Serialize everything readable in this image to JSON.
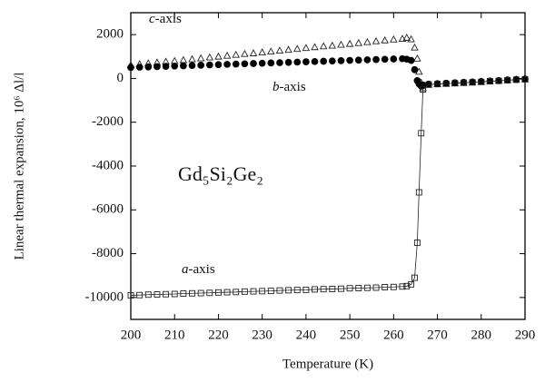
{
  "chart_data": {
    "type": "scatter",
    "xlabel": "Temperature (K)",
    "ylabel": "Linear thermal expansion, 10⁶ Δl/l",
    "annotation": "Gd₅Si₂Ge₂",
    "xlim": [
      200,
      290
    ],
    "xticks": [
      200,
      210,
      220,
      230,
      240,
      250,
      260,
      270,
      280,
      290
    ],
    "ylim": [
      -11000,
      3000
    ],
    "yticks": [
      -10000,
      -8000,
      -6000,
      -4000,
      -2000,
      0,
      2000
    ],
    "series": [
      {
        "name": "c-axis",
        "marker": "triangle",
        "filled": false,
        "color": "#222222",
        "x": [
          200,
          202,
          204,
          206,
          208,
          210,
          212,
          214,
          216,
          218,
          220,
          222,
          224,
          226,
          228,
          230,
          232,
          234,
          236,
          238,
          240,
          242,
          244,
          246,
          248,
          250,
          252,
          254,
          256,
          258,
          260,
          262,
          263,
          264,
          264.8,
          265.4,
          265.8,
          266.3,
          266.7,
          268,
          270,
          272,
          274,
          276,
          278,
          280,
          282,
          284,
          286,
          288,
          290
        ],
        "values": [
          600,
          640,
          680,
          720,
          760,
          790,
          830,
          870,
          910,
          950,
          990,
          1030,
          1070,
          1110,
          1140,
          1180,
          1220,
          1260,
          1300,
          1340,
          1380,
          1420,
          1460,
          1490,
          1530,
          1570,
          1610,
          1650,
          1690,
          1730,
          1770,
          1800,
          1850,
          1780,
          1400,
          900,
          300,
          -200,
          -450,
          -300,
          -270,
          -250,
          -230,
          -210,
          -190,
          -160,
          -140,
          -110,
          -90,
          -60,
          -40
        ]
      },
      {
        "name": "b-axis",
        "marker": "circle",
        "filled": true,
        "color": "#000000",
        "x": [
          200,
          202,
          204,
          206,
          208,
          210,
          212,
          214,
          216,
          218,
          220,
          222,
          224,
          226,
          228,
          230,
          232,
          234,
          236,
          238,
          240,
          242,
          244,
          246,
          248,
          250,
          252,
          254,
          256,
          258,
          260,
          262,
          263,
          264,
          264.8,
          265.4,
          265.8,
          266.3,
          266.7,
          268,
          270,
          272,
          274,
          276,
          278,
          280,
          282,
          284,
          286,
          288,
          290
        ],
        "values": [
          500,
          513,
          526,
          539,
          552,
          565,
          577,
          590,
          603,
          616,
          629,
          642,
          655,
          668,
          681,
          694,
          706,
          719,
          732,
          745,
          758,
          771,
          784,
          797,
          810,
          823,
          835,
          848,
          861,
          874,
          887,
          900,
          880,
          820,
          400,
          -100,
          -250,
          -350,
          -300,
          -260,
          -240,
          -220,
          -200,
          -180,
          -160,
          -140,
          -120,
          -100,
          -70,
          -50,
          -30
        ]
      },
      {
        "name": "a-axis",
        "marker": "square",
        "filled": false,
        "color": "#222222",
        "line": true,
        "x": [
          200,
          202,
          204,
          206,
          208,
          210,
          212,
          214,
          216,
          218,
          220,
          222,
          224,
          226,
          228,
          230,
          232,
          234,
          236,
          238,
          240,
          242,
          244,
          246,
          248,
          250,
          252,
          254,
          256,
          258,
          260,
          262,
          263,
          264,
          264.8,
          265.4,
          265.8,
          266.3,
          266.7,
          268,
          270,
          272,
          274,
          276,
          278,
          280,
          282,
          284,
          286,
          288,
          290
        ],
        "values": [
          -9900,
          -9890,
          -9870,
          -9860,
          -9850,
          -9840,
          -9820,
          -9810,
          -9800,
          -9790,
          -9770,
          -9760,
          -9750,
          -9730,
          -9720,
          -9710,
          -9700,
          -9680,
          -9670,
          -9660,
          -9650,
          -9630,
          -9620,
          -9610,
          -9600,
          -9580,
          -9570,
          -9560,
          -9550,
          -9530,
          -9520,
          -9500,
          -9480,
          -9400,
          -9100,
          -7500,
          -5200,
          -2500,
          -500,
          -280,
          -260,
          -240,
          -220,
          -200,
          -180,
          -160,
          -130,
          -110,
          -80,
          -60,
          -40
        ]
      }
    ]
  }
}
